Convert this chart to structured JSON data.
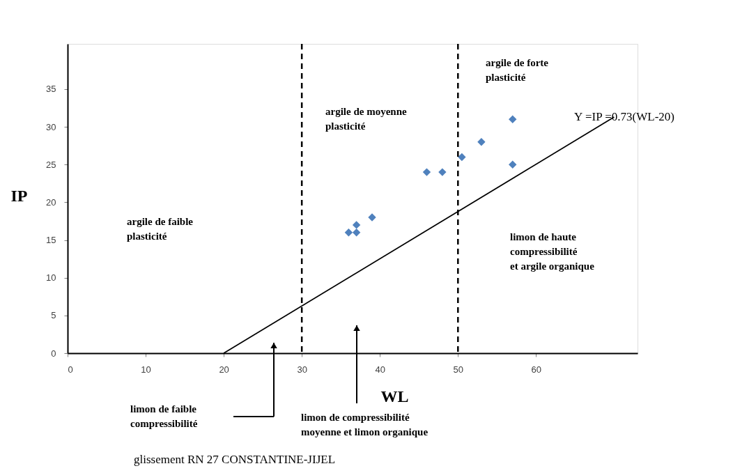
{
  "chart_data": {
    "type": "scatter",
    "title": "glissement RN 27 CONSTANTINE-JIJEL",
    "xlabel": "WL",
    "ylabel": "IP",
    "xlim": [
      0,
      73
    ],
    "ylim": [
      0,
      41
    ],
    "xticks": [
      0,
      10,
      20,
      30,
      40,
      50,
      60
    ],
    "yticks": [
      0,
      5,
      10,
      15,
      20,
      25,
      30,
      35
    ],
    "grid": false,
    "marker": "diamond",
    "series": [
      {
        "color": "#4f81bd",
        "x": [
          36,
          37,
          37,
          39,
          46,
          48,
          50.5,
          53,
          57,
          57
        ],
        "values": [
          16,
          17,
          16,
          18,
          24,
          24,
          26,
          28,
          31,
          25
        ]
      },
      {
        "type": "line",
        "color": "#000000",
        "line_style": "solid",
        "marker": "none",
        "x": [
          20,
          70
        ],
        "values": [
          0,
          31.3
        ]
      }
    ],
    "ref_lines": [
      {
        "axis": "x",
        "value": 30,
        "color": "#000000",
        "line_style": "dashed"
      },
      {
        "axis": "x",
        "value": 50,
        "color": "#000000",
        "line_style": "dashed"
      }
    ],
    "annotations": [
      "argile de faible\nplasticité",
      "argile de moyenne\nplasticité",
      "argile de forte\nplasticité",
      "limon de haute\ncompressibilité\net argile organique",
      "Y =IP =0.73(WL-20)",
      "limon de faible\ncompressibilité",
      "limon de compressibilité\nmoyenne et limon organique"
    ]
  }
}
